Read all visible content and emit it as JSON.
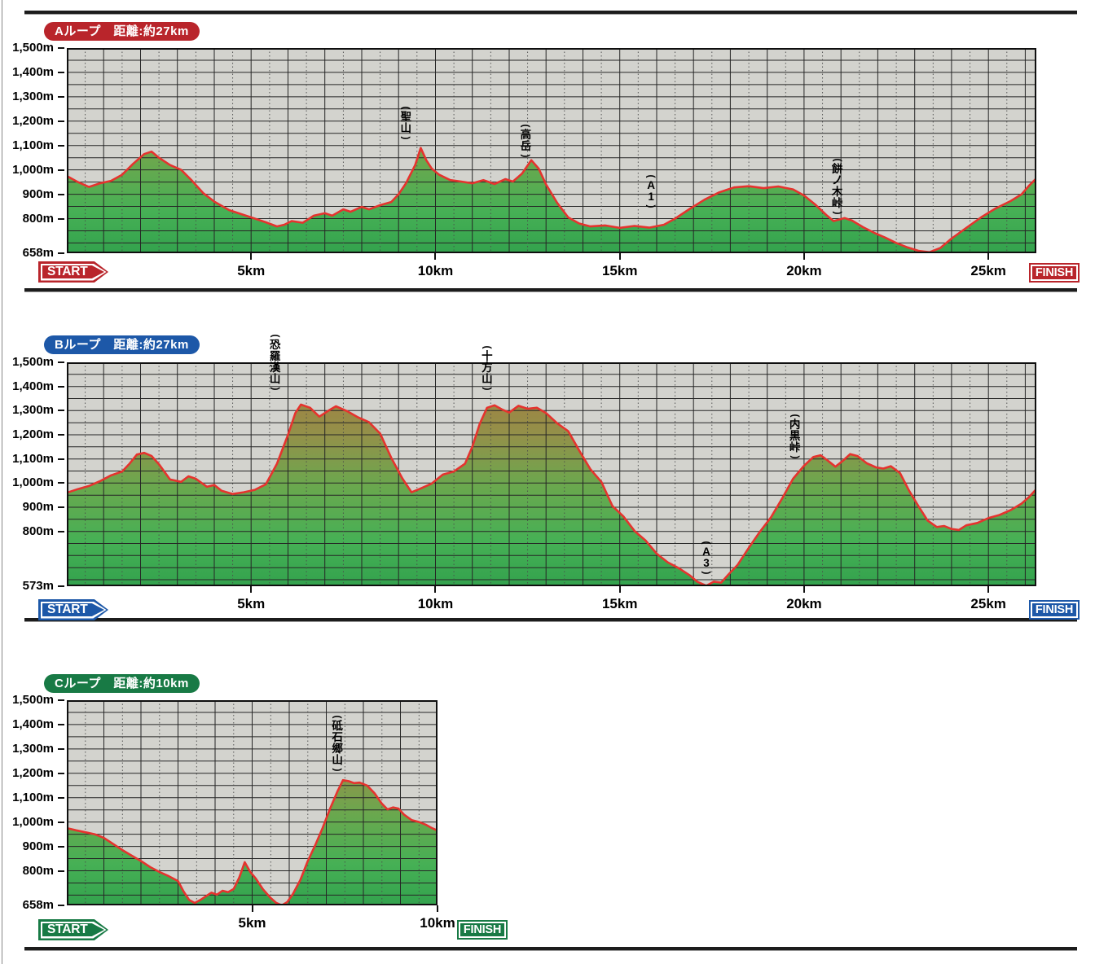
{
  "charts": [
    {
      "id": "A",
      "badge_label": "Aループ　距離:約27km",
      "accent_color": "#b9252b",
      "start_label": "START",
      "finish_label": "FINISH",
      "y_axis_labels": [
        "1,500m",
        "1,400m",
        "1,300m",
        "1,200m",
        "1,100m",
        "1,000m",
        "900m",
        "800m"
      ],
      "y_axis_min_label": "658m",
      "x_tick_labels": [
        "5km",
        "10km",
        "15km",
        "20km",
        "25km"
      ]
    },
    {
      "id": "B",
      "badge_label": "Bループ　距離:約27km",
      "accent_color": "#1d58a8",
      "start_label": "START",
      "finish_label": "FINISH",
      "y_axis_labels": [
        "1,500m",
        "1,400m",
        "1,300m",
        "1,200m",
        "1,100m",
        "1,000m",
        "900m",
        "800m"
      ],
      "y_axis_min_label": "573m",
      "x_tick_labels": [
        "5km",
        "10km",
        "15km",
        "20km",
        "25km"
      ]
    },
    {
      "id": "C",
      "badge_label": "Cループ　距離:約10km",
      "accent_color": "#187a45",
      "start_label": "START",
      "finish_label": "FINISH",
      "y_axis_labels": [
        "1,500m",
        "1,400m",
        "1,300m",
        "1,200m",
        "1,100m",
        "1,000m",
        "900m",
        "800m"
      ],
      "y_axis_min_label": "658m",
      "x_tick_labels": [
        "5km",
        "10km"
      ]
    }
  ],
  "chart_data": [
    {
      "type": "area",
      "name": "Aループ",
      "distance_label": "約27km",
      "x_unit": "km",
      "y_unit": "m",
      "x_range": [
        0,
        26.3
      ],
      "y_range": [
        658,
        1500
      ],
      "grid_step_m": 50,
      "grid_step_km": 1,
      "annotations": [
        {
          "label": "(聖山)",
          "km": 9.2
        },
        {
          "label": "(高岳)",
          "km": 12.45
        },
        {
          "label": "(A1)",
          "km": 15.85
        },
        {
          "label": "(餅ノ木峠)",
          "km": 20.9
        }
      ],
      "points": [
        [
          0,
          975
        ],
        [
          0.3,
          950
        ],
        [
          0.6,
          930
        ],
        [
          0.9,
          945
        ],
        [
          1.2,
          955
        ],
        [
          1.5,
          980
        ],
        [
          1.8,
          1025
        ],
        [
          2.1,
          1065
        ],
        [
          2.3,
          1075
        ],
        [
          2.5,
          1050
        ],
        [
          2.8,
          1020
        ],
        [
          3.1,
          1000
        ],
        [
          3.4,
          955
        ],
        [
          3.7,
          905
        ],
        [
          4.0,
          870
        ],
        [
          4.4,
          835
        ],
        [
          4.8,
          815
        ],
        [
          5.1,
          800
        ],
        [
          5.4,
          785
        ],
        [
          5.7,
          768
        ],
        [
          5.9,
          775
        ],
        [
          6.1,
          790
        ],
        [
          6.4,
          783
        ],
        [
          6.7,
          812
        ],
        [
          7.0,
          822
        ],
        [
          7.2,
          812
        ],
        [
          7.5,
          838
        ],
        [
          7.7,
          828
        ],
        [
          8.0,
          848
        ],
        [
          8.2,
          838
        ],
        [
          8.5,
          855
        ],
        [
          8.8,
          868
        ],
        [
          9.0,
          900
        ],
        [
          9.2,
          945
        ],
        [
          9.45,
          1020
        ],
        [
          9.6,
          1090
        ],
        [
          9.75,
          1040
        ],
        [
          9.9,
          1005
        ],
        [
          10.1,
          980
        ],
        [
          10.4,
          958
        ],
        [
          10.7,
          952
        ],
        [
          11.0,
          945
        ],
        [
          11.3,
          958
        ],
        [
          11.6,
          942
        ],
        [
          11.9,
          962
        ],
        [
          12.1,
          952
        ],
        [
          12.35,
          985
        ],
        [
          12.6,
          1040
        ],
        [
          12.8,
          1005
        ],
        [
          13.0,
          940
        ],
        [
          13.3,
          865
        ],
        [
          13.6,
          805
        ],
        [
          13.9,
          780
        ],
        [
          14.2,
          768
        ],
        [
          14.6,
          772
        ],
        [
          15.0,
          762
        ],
        [
          15.4,
          770
        ],
        [
          15.8,
          763
        ],
        [
          16.2,
          775
        ],
        [
          16.5,
          800
        ],
        [
          16.9,
          840
        ],
        [
          17.3,
          878
        ],
        [
          17.7,
          908
        ],
        [
          18.1,
          928
        ],
        [
          18.5,
          933
        ],
        [
          18.9,
          925
        ],
        [
          19.3,
          932
        ],
        [
          19.7,
          920
        ],
        [
          20.0,
          895
        ],
        [
          20.3,
          858
        ],
        [
          20.6,
          815
        ],
        [
          20.8,
          790
        ],
        [
          21.1,
          802
        ],
        [
          21.3,
          792
        ],
        [
          21.6,
          765
        ],
        [
          21.9,
          742
        ],
        [
          22.2,
          722
        ],
        [
          22.5,
          700
        ],
        [
          22.8,
          682
        ],
        [
          23.1,
          668
        ],
        [
          23.4,
          662
        ],
        [
          23.7,
          680
        ],
        [
          24.0,
          718
        ],
        [
          24.4,
          762
        ],
        [
          24.8,
          805
        ],
        [
          25.2,
          842
        ],
        [
          25.6,
          872
        ],
        [
          25.9,
          900
        ],
        [
          26.1,
          935
        ],
        [
          26.3,
          965
        ]
      ]
    },
    {
      "type": "area",
      "name": "Bループ",
      "distance_label": "約27km",
      "x_unit": "km",
      "y_unit": "m",
      "x_range": [
        0,
        26.3
      ],
      "y_range": [
        573,
        1500
      ],
      "grid_step_m": 50,
      "grid_step_km": 1,
      "annotations": [
        {
          "label": "(恐羅漢山)",
          "km": 5.65
        },
        {
          "label": "(十方山)",
          "km": 11.4
        },
        {
          "label": "(A3)",
          "km": 17.35
        },
        {
          "label": "(内黒峠)",
          "km": 19.75
        }
      ],
      "points": [
        [
          0,
          960
        ],
        [
          0.3,
          975
        ],
        [
          0.6,
          988
        ],
        [
          0.9,
          1008
        ],
        [
          1.2,
          1032
        ],
        [
          1.5,
          1048
        ],
        [
          1.7,
          1080
        ],
        [
          1.9,
          1118
        ],
        [
          2.1,
          1125
        ],
        [
          2.3,
          1112
        ],
        [
          2.5,
          1078
        ],
        [
          2.8,
          1015
        ],
        [
          3.1,
          1005
        ],
        [
          3.3,
          1028
        ],
        [
          3.5,
          1018
        ],
        [
          3.8,
          985
        ],
        [
          4.0,
          992
        ],
        [
          4.2,
          968
        ],
        [
          4.5,
          955
        ],
        [
          4.8,
          962
        ],
        [
          5.1,
          972
        ],
        [
          5.4,
          995
        ],
        [
          5.7,
          1080
        ],
        [
          6.0,
          1200
        ],
        [
          6.2,
          1290
        ],
        [
          6.35,
          1325
        ],
        [
          6.6,
          1312
        ],
        [
          6.85,
          1275
        ],
        [
          7.1,
          1300
        ],
        [
          7.3,
          1318
        ],
        [
          7.6,
          1298
        ],
        [
          7.9,
          1272
        ],
        [
          8.2,
          1252
        ],
        [
          8.5,
          1205
        ],
        [
          8.8,
          1105
        ],
        [
          9.1,
          1020
        ],
        [
          9.35,
          962
        ],
        [
          9.6,
          978
        ],
        [
          9.9,
          998
        ],
        [
          10.2,
          1035
        ],
        [
          10.5,
          1048
        ],
        [
          10.8,
          1080
        ],
        [
          11.0,
          1150
        ],
        [
          11.2,
          1245
        ],
        [
          11.4,
          1312
        ],
        [
          11.6,
          1322
        ],
        [
          11.8,
          1305
        ],
        [
          12.0,
          1292
        ],
        [
          12.25,
          1320
        ],
        [
          12.5,
          1308
        ],
        [
          12.75,
          1312
        ],
        [
          13.0,
          1290
        ],
        [
          13.3,
          1248
        ],
        [
          13.6,
          1215
        ],
        [
          13.9,
          1135
        ],
        [
          14.2,
          1058
        ],
        [
          14.5,
          1005
        ],
        [
          14.8,
          905
        ],
        [
          15.1,
          862
        ],
        [
          15.4,
          802
        ],
        [
          15.7,
          762
        ],
        [
          16.0,
          708
        ],
        [
          16.3,
          672
        ],
        [
          16.6,
          648
        ],
        [
          16.9,
          618
        ],
        [
          17.1,
          592
        ],
        [
          17.35,
          575
        ],
        [
          17.55,
          592
        ],
        [
          17.75,
          588
        ],
        [
          17.95,
          622
        ],
        [
          18.2,
          662
        ],
        [
          18.5,
          732
        ],
        [
          18.8,
          798
        ],
        [
          19.1,
          858
        ],
        [
          19.4,
          935
        ],
        [
          19.7,
          1018
        ],
        [
          20.0,
          1072
        ],
        [
          20.25,
          1108
        ],
        [
          20.45,
          1115
        ],
        [
          20.65,
          1092
        ],
        [
          20.85,
          1068
        ],
        [
          21.05,
          1092
        ],
        [
          21.25,
          1120
        ],
        [
          21.45,
          1112
        ],
        [
          21.7,
          1082
        ],
        [
          21.95,
          1065
        ],
        [
          22.15,
          1060
        ],
        [
          22.35,
          1070
        ],
        [
          22.6,
          1042
        ],
        [
          22.85,
          968
        ],
        [
          23.1,
          905
        ],
        [
          23.35,
          845
        ],
        [
          23.6,
          818
        ],
        [
          23.8,
          822
        ],
        [
          24.0,
          810
        ],
        [
          24.2,
          806
        ],
        [
          24.4,
          825
        ],
        [
          24.7,
          835
        ],
        [
          25.0,
          855
        ],
        [
          25.3,
          868
        ],
        [
          25.6,
          888
        ],
        [
          25.9,
          915
        ],
        [
          26.1,
          942
        ],
        [
          26.3,
          975
        ]
      ]
    },
    {
      "type": "area",
      "name": "Cループ",
      "distance_label": "約10km",
      "x_unit": "km",
      "y_unit": "m",
      "x_range": [
        0,
        10
      ],
      "y_range": [
        658,
        1500
      ],
      "grid_step_m": 50,
      "grid_step_km": 1,
      "annotations": [
        {
          "label": "(砥石郷山)",
          "km": 7.3
        }
      ],
      "points": [
        [
          0,
          975
        ],
        [
          0.25,
          966
        ],
        [
          0.5,
          958
        ],
        [
          0.75,
          950
        ],
        [
          1.0,
          935
        ],
        [
          1.25,
          910
        ],
        [
          1.5,
          885
        ],
        [
          1.75,
          862
        ],
        [
          2.0,
          840
        ],
        [
          2.25,
          815
        ],
        [
          2.5,
          795
        ],
        [
          2.75,
          778
        ],
        [
          3.0,
          758
        ],
        [
          3.15,
          715
        ],
        [
          3.3,
          680
        ],
        [
          3.45,
          668
        ],
        [
          3.6,
          680
        ],
        [
          3.75,
          695
        ],
        [
          3.9,
          710
        ],
        [
          4.05,
          702
        ],
        [
          4.2,
          718
        ],
        [
          4.35,
          712
        ],
        [
          4.5,
          725
        ],
        [
          4.65,
          772
        ],
        [
          4.8,
          835
        ],
        [
          4.95,
          795
        ],
        [
          5.1,
          768
        ],
        [
          5.3,
          722
        ],
        [
          5.5,
          688
        ],
        [
          5.65,
          668
        ],
        [
          5.8,
          658
        ],
        [
          5.95,
          672
        ],
        [
          6.1,
          705
        ],
        [
          6.3,
          762
        ],
        [
          6.5,
          840
        ],
        [
          6.7,
          905
        ],
        [
          6.9,
          975
        ],
        [
          7.1,
          1055
        ],
        [
          7.3,
          1125
        ],
        [
          7.45,
          1172
        ],
        [
          7.6,
          1168
        ],
        [
          7.75,
          1160
        ],
        [
          7.9,
          1162
        ],
        [
          8.1,
          1150
        ],
        [
          8.3,
          1118
        ],
        [
          8.5,
          1075
        ],
        [
          8.65,
          1052
        ],
        [
          8.8,
          1060
        ],
        [
          8.95,
          1055
        ],
        [
          9.1,
          1030
        ],
        [
          9.3,
          1008
        ],
        [
          9.5,
          1000
        ],
        [
          9.7,
          988
        ],
        [
          9.85,
          975
        ],
        [
          10.0,
          965
        ]
      ]
    }
  ]
}
